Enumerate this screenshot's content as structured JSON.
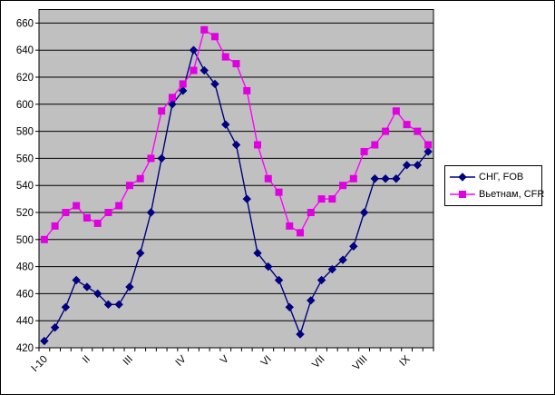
{
  "chart_data": {
    "type": "line",
    "title": "",
    "xlabel": "",
    "ylabel": "",
    "grid": "horizontal",
    "legend_position": "right",
    "plot_bg_color": "#c0c0c0",
    "gridline_color": "#000000",
    "axis_text_color": "#000000",
    "ylim": [
      420,
      670
    ],
    "ytick_step": 20,
    "ytick_labels": [
      "420",
      "440",
      "460",
      "480",
      "500",
      "520",
      "540",
      "560",
      "580",
      "600",
      "620",
      "640",
      "660"
    ],
    "categories": [
      "I-10",
      "",
      "",
      "",
      "II",
      "",
      "",
      "",
      "III",
      "",
      "",
      "",
      "",
      "IV",
      "",
      "",
      "",
      "V",
      "",
      "",
      "",
      "VI",
      "",
      "",
      "",
      "",
      "VII",
      "",
      "",
      "",
      "VIII",
      "",
      "",
      "",
      "IX",
      "",
      ""
    ],
    "series": [
      {
        "name": "СНГ, FOB",
        "marker": "diamond",
        "line_color": "#000080",
        "marker_color": "#000080",
        "values": [
          425,
          435,
          450,
          470,
          465,
          460,
          452,
          452,
          465,
          490,
          520,
          560,
          600,
          610,
          640,
          625,
          615,
          585,
          570,
          530,
          490,
          480,
          470,
          450,
          430,
          455,
          470,
          478,
          485,
          495,
          520,
          545,
          545,
          545,
          555,
          555,
          565
        ]
      },
      {
        "name": "Вьетнам, CFR",
        "marker": "square",
        "line_color": "#ff00ff",
        "marker_color": "#e000e0",
        "values": [
          500,
          510,
          520,
          525,
          516,
          512,
          520,
          525,
          540,
          545,
          560,
          595,
          605,
          615,
          625,
          655,
          650,
          635,
          630,
          610,
          570,
          545,
          535,
          510,
          505,
          520,
          530,
          530,
          540,
          545,
          565,
          570,
          580,
          595,
          585,
          580,
          570
        ]
      }
    ]
  }
}
